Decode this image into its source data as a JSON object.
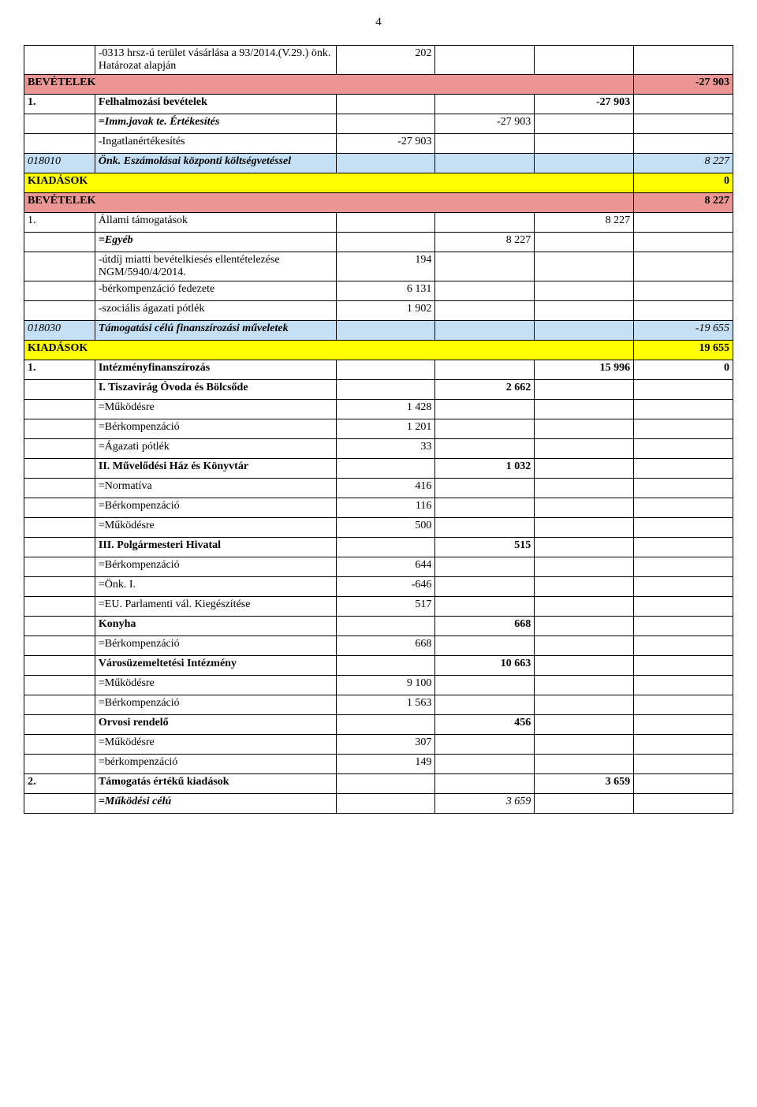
{
  "page_number": "4",
  "colors": {
    "pink": "#eb9694",
    "yellow": "#ffff00",
    "lightblue": "#c5e0f5",
    "white": "#ffffff"
  },
  "rows": [
    {
      "c0": "",
      "c1": "-0313 hrsz-ú terület vásárlása a 93/2014.(V.29.) önk. Határozat alapján",
      "c2": "202",
      "c3": "",
      "c4": "",
      "c5": "",
      "bg": "white",
      "style1": ""
    },
    {
      "c0": "BEVÉTELEK",
      "c1": "",
      "c2": "",
      "c3": "",
      "c4": "",
      "c5": "-27 903",
      "bg": "pink",
      "style0": "bold",
      "style5": "bold",
      "span": true
    },
    {
      "c0": "1.",
      "c1": "Felhalmozási bevételek",
      "c2": "",
      "c3": "",
      "c4": "-27 903",
      "c5": "",
      "bg": "white",
      "style0": "bold",
      "style1": "bold",
      "style4": "bold"
    },
    {
      "c0": "",
      "c1": "=Imm.javak te. Értékesítés",
      "c2": "",
      "c3": "-27 903",
      "c4": "",
      "c5": "",
      "bg": "white",
      "style1": "bolditalic",
      "style3": ""
    },
    {
      "c0": "",
      "c1": "-Ingatlanértékesítés",
      "c2": "-27 903",
      "c3": "",
      "c4": "",
      "c5": "",
      "bg": "white"
    },
    {
      "c0": "018010",
      "c1": "Önk. Eszámolásai központi költségvetéssel",
      "c2": "",
      "c3": "",
      "c4": "",
      "c5": "8 227",
      "bg": "lightblue",
      "style0": "italic",
      "style1": "bolditalic",
      "style5": "italic"
    },
    {
      "c0": "KIADÁSOK",
      "c1": "",
      "c2": "",
      "c3": "",
      "c4": "",
      "c5": "0",
      "bg": "yellow",
      "style0": "bold",
      "style5": "bold",
      "span": true
    },
    {
      "c0": "BEVÉTELEK",
      "c1": "",
      "c2": "",
      "c3": "",
      "c4": "",
      "c5": "8 227",
      "bg": "pink",
      "style0": "bold",
      "style5": "bold",
      "span": true
    },
    {
      "c0": "1.",
      "c1": "Állami támogatások",
      "c2": "",
      "c3": "",
      "c4": "8 227",
      "c5": "",
      "bg": "white",
      "style0": "",
      "style1": ""
    },
    {
      "c0": "",
      "c1": "=Egyéb",
      "c2": "",
      "c3": "8 227",
      "c4": "",
      "c5": "",
      "bg": "white",
      "style1": "bolditalic"
    },
    {
      "c0": "",
      "c1": "-útdíj miatti bevételkiesés ellentételezése NGM/5940/4/2014.",
      "c2": "194",
      "c3": "",
      "c4": "",
      "c5": "",
      "bg": "white"
    },
    {
      "c0": "",
      "c1": "-bérkompenzáció fedezete",
      "c2": "6 131",
      "c3": "",
      "c4": "",
      "c5": "",
      "bg": "white"
    },
    {
      "c0": "",
      "c1": "-szociális ágazati pótlék",
      "c2": "1 902",
      "c3": "",
      "c4": "",
      "c5": "",
      "bg": "white"
    },
    {
      "c0": "018030",
      "c1": "Támogatási célú finanszírozási műveletek",
      "c2": "",
      "c3": "",
      "c4": "",
      "c5": "-19 655",
      "bg": "lightblue",
      "style0": "italic",
      "style1": "bolditalic",
      "style5": "italic"
    },
    {
      "c0": "KIADÁSOK",
      "c1": "",
      "c2": "",
      "c3": "",
      "c4": "",
      "c5": "19 655",
      "bg": "yellow",
      "style0": "bold",
      "style5": "bold",
      "span": true
    },
    {
      "c0": "1.",
      "c1": "Intézményfinanszírozás",
      "c2": "",
      "c3": "",
      "c4": "15 996",
      "c5": "0",
      "bg": "white",
      "style0": "bold",
      "style1": "bold",
      "style4": "bold",
      "style5": "bold"
    },
    {
      "c0": "",
      "c1": "I. Tiszavirág Óvoda és Bölcsőde",
      "c2": "",
      "c3": "2 662",
      "c4": "",
      "c5": "",
      "bg": "white",
      "style1": "bold",
      "style3": "bold"
    },
    {
      "c0": "",
      "c1": "=Működésre",
      "c2": "1 428",
      "c3": "",
      "c4": "",
      "c5": "",
      "bg": "white"
    },
    {
      "c0": "",
      "c1": "=Bérkompenzáció",
      "c2": "1 201",
      "c3": "",
      "c4": "",
      "c5": "",
      "bg": "white"
    },
    {
      "c0": "",
      "c1": "=Ágazati pótlék",
      "c2": "33",
      "c3": "",
      "c4": "",
      "c5": "",
      "bg": "white"
    },
    {
      "c0": "",
      "c1": "II. Művelődési Ház és Könyvtár",
      "c2": "",
      "c3": "1 032",
      "c4": "",
      "c5": "",
      "bg": "white",
      "style1": "bold",
      "style3": "bold"
    },
    {
      "c0": "",
      "c1": "=Normatíva",
      "c2": "416",
      "c3": "",
      "c4": "",
      "c5": "",
      "bg": "white"
    },
    {
      "c0": "",
      "c1": "=Bérkompenzáció",
      "c2": "116",
      "c3": "",
      "c4": "",
      "c5": "",
      "bg": "white"
    },
    {
      "c0": "",
      "c1": "=Működésre",
      "c2": "500",
      "c3": "",
      "c4": "",
      "c5": "",
      "bg": "white"
    },
    {
      "c0": "",
      "c1": "III. Polgármesteri Hivatal",
      "c2": "",
      "c3": "515",
      "c4": "",
      "c5": "",
      "bg": "white",
      "style1": "bold",
      "style3": "bold"
    },
    {
      "c0": "",
      "c1": "=Bérkompenzáció",
      "c2": "644",
      "c3": "",
      "c4": "",
      "c5": "",
      "bg": "white"
    },
    {
      "c0": "",
      "c1": "=Önk. I.",
      "c2": "-646",
      "c3": "",
      "c4": "",
      "c5": "",
      "bg": "white"
    },
    {
      "c0": "",
      "c1": "=EU. Parlamenti vál. Kiegészítése",
      "c2": "517",
      "c3": "",
      "c4": "",
      "c5": "",
      "bg": "white"
    },
    {
      "c0": "",
      "c1": "Konyha",
      "c2": "",
      "c3": "668",
      "c4": "",
      "c5": "",
      "bg": "white",
      "style1": "bold",
      "style3": "bold"
    },
    {
      "c0": "",
      "c1": "=Bérkompenzáció",
      "c2": "668",
      "c3": "",
      "c4": "",
      "c5": "",
      "bg": "white"
    },
    {
      "c0": "",
      "c1": "Városüzemeltetési Intézmény",
      "c2": "",
      "c3": "10 663",
      "c4": "",
      "c5": "",
      "bg": "white",
      "style1": "bold",
      "style3": "bold"
    },
    {
      "c0": "",
      "c1": "=Működésre",
      "c2": "9 100",
      "c3": "",
      "c4": "",
      "c5": "",
      "bg": "white"
    },
    {
      "c0": "",
      "c1": "=Bérkompenzáció",
      "c2": "1 563",
      "c3": "",
      "c4": "",
      "c5": "",
      "bg": "white"
    },
    {
      "c0": "",
      "c1": "Orvosi rendelő",
      "c2": "",
      "c3": "456",
      "c4": "",
      "c5": "",
      "bg": "white",
      "style1": "bold",
      "style3": "bold"
    },
    {
      "c0": "",
      "c1": "=Működésre",
      "c2": "307",
      "c3": "",
      "c4": "",
      "c5": "",
      "bg": "white"
    },
    {
      "c0": "",
      "c1": "=bérkompenzáció",
      "c2": "149",
      "c3": "",
      "c4": "",
      "c5": "",
      "bg": "white"
    },
    {
      "c0": "2.",
      "c1": "Támogatás értékű kiadások",
      "c2": "",
      "c3": "",
      "c4": "3 659",
      "c5": "",
      "bg": "white",
      "style0": "bold",
      "style1": "bold",
      "style4": "bold"
    },
    {
      "c0": "",
      "c1": "=Működési célú",
      "c2": "",
      "c3": "3 659",
      "c4": "",
      "c5": "",
      "bg": "white",
      "style1": "bolditalic",
      "style3": "italic"
    }
  ]
}
